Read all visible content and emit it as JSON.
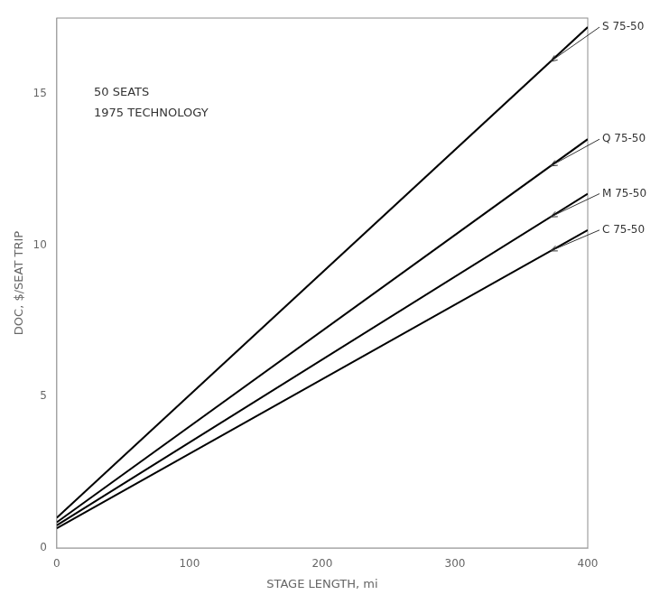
{
  "chart_data": {
    "type": "line",
    "xlabel": "STAGE LENGTH, mi",
    "ylabel": "DOC, $/SEAT TRIP",
    "annotation": "50 SEATS\n1975 TECHNOLOGY",
    "x": [
      0,
      400
    ],
    "series": [
      {
        "name": "S 75-50",
        "values": [
          1.0,
          17.2
        ]
      },
      {
        "name": "Q 75-50",
        "values": [
          0.85,
          13.5
        ]
      },
      {
        "name": "M 75-50",
        "values": [
          0.75,
          11.7
        ]
      },
      {
        "name": "C 75-50",
        "values": [
          0.65,
          10.5
        ]
      }
    ],
    "color": "#000000",
    "xlim": [
      0,
      400
    ],
    "ylim": [
      0,
      17.5
    ],
    "xticks": [
      0,
      100,
      200,
      300,
      400
    ],
    "yticks": [
      0,
      5,
      10,
      15
    ],
    "grid": false,
    "legend": false
  }
}
